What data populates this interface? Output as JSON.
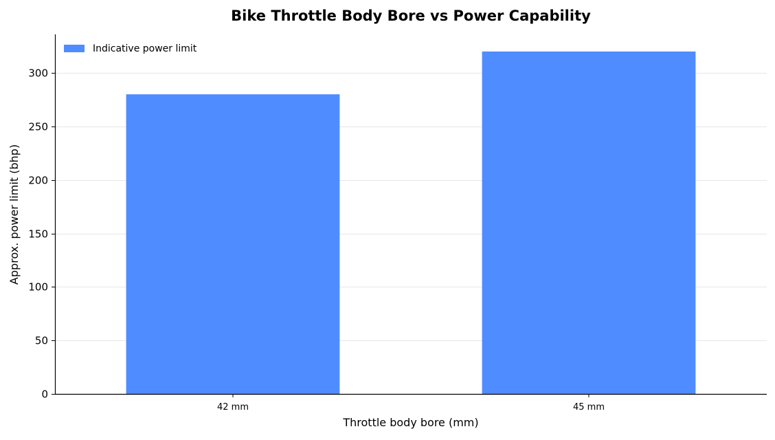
{
  "chart_data": {
    "type": "bar",
    "title": "Bike Throttle Body Bore vs Power Capability",
    "xlabel": "Throttle body bore (mm)",
    "ylabel": "Approx. power limit (bhp)",
    "categories": [
      "42 mm",
      "45 mm"
    ],
    "series": [
      {
        "name": "Indicative power limit",
        "values": [
          280,
          320
        ],
        "color": "#4f8cff"
      }
    ],
    "ylim": [
      0,
      336
    ],
    "yticks": [
      0,
      50,
      100,
      150,
      200,
      250,
      300
    ],
    "grid": "y-axis, horizontal lines",
    "legend": "top-left"
  }
}
